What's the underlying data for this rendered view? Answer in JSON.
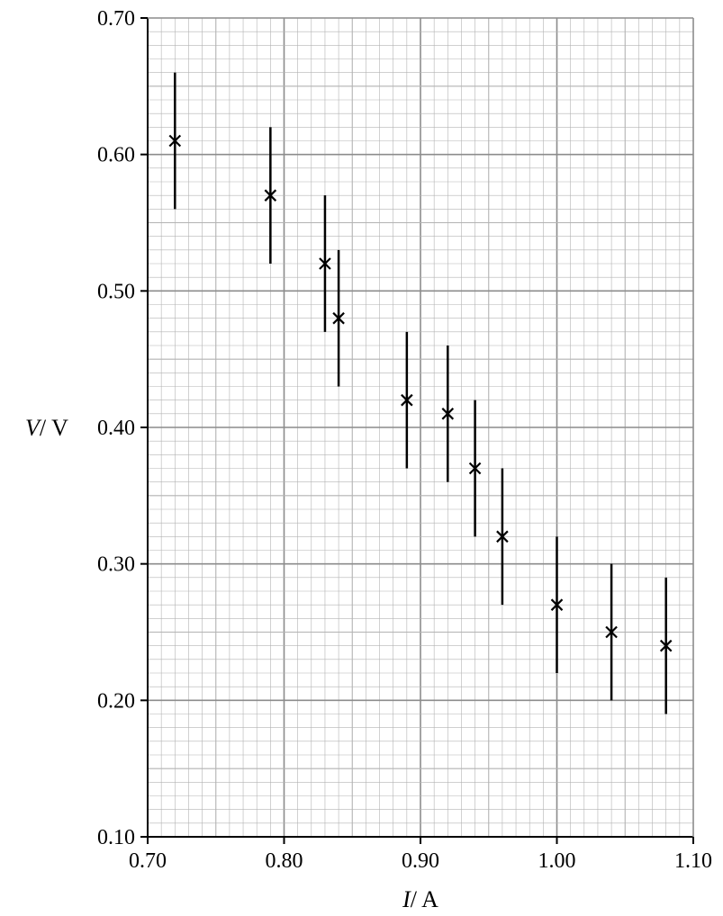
{
  "chart_data": {
    "type": "scatter",
    "title": "",
    "xlabel": {
      "symbol": "I",
      "unit": "/ A"
    },
    "ylabel": {
      "symbol": "V",
      "unit": "/ V"
    },
    "xlim": [
      0.7,
      1.1
    ],
    "ylim": [
      0.1,
      0.7
    ],
    "grid": true,
    "x_ticks": [
      "0.70",
      "0.80",
      "0.90",
      "1.00",
      "1.10"
    ],
    "y_ticks": [
      "0.10",
      "0.20",
      "0.30",
      "0.40",
      "0.50",
      "0.60",
      "0.70"
    ],
    "points": [
      {
        "x": 0.72,
        "y": 0.61,
        "err": 0.05
      },
      {
        "x": 0.79,
        "y": 0.57,
        "err": 0.05
      },
      {
        "x": 0.83,
        "y": 0.52,
        "err": 0.05
      },
      {
        "x": 0.84,
        "y": 0.48,
        "err": 0.05
      },
      {
        "x": 0.89,
        "y": 0.42,
        "err": 0.05
      },
      {
        "x": 0.92,
        "y": 0.41,
        "err": 0.05
      },
      {
        "x": 0.94,
        "y": 0.37,
        "err": 0.05
      },
      {
        "x": 0.96,
        "y": 0.32,
        "err": 0.05
      },
      {
        "x": 1.0,
        "y": 0.27,
        "err": 0.05
      },
      {
        "x": 1.04,
        "y": 0.25,
        "err": 0.05
      },
      {
        "x": 1.08,
        "y": 0.24,
        "err": 0.05
      }
    ],
    "colors": {
      "minor_grid": "#b3b3b3",
      "major_grid": "#8c8c8c",
      "axis": "#000000",
      "marks": "#000000"
    }
  }
}
